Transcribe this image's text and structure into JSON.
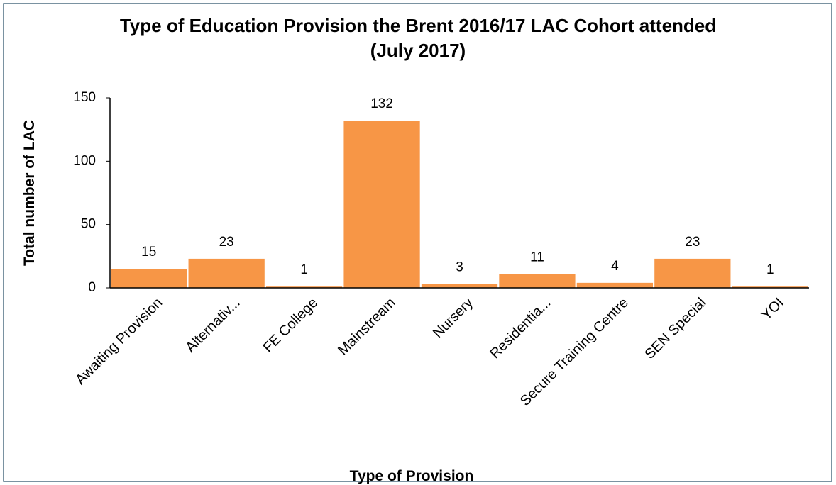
{
  "chart_data": {
    "type": "bar",
    "title": [
      "Type of Education Provision the Brent 2016/17 LAC Cohort attended",
      "(July 2017)"
    ],
    "x_label": "Type of Provision",
    "y_label": "Total number of LAC",
    "categories": [
      "Awaiting Provision",
      "Alternativ...",
      "FE College",
      "Mainstream",
      "Nursery",
      "Residentia...",
      "Secure Training Centre",
      "SEN Special",
      "YOI"
    ],
    "values": [
      15,
      23,
      1,
      132,
      3,
      11,
      4,
      23,
      1
    ],
    "color": "#f79646",
    "ylim": [
      0,
      150
    ],
    "yticks": [
      0,
      50,
      100,
      150
    ],
    "grid": false
  }
}
